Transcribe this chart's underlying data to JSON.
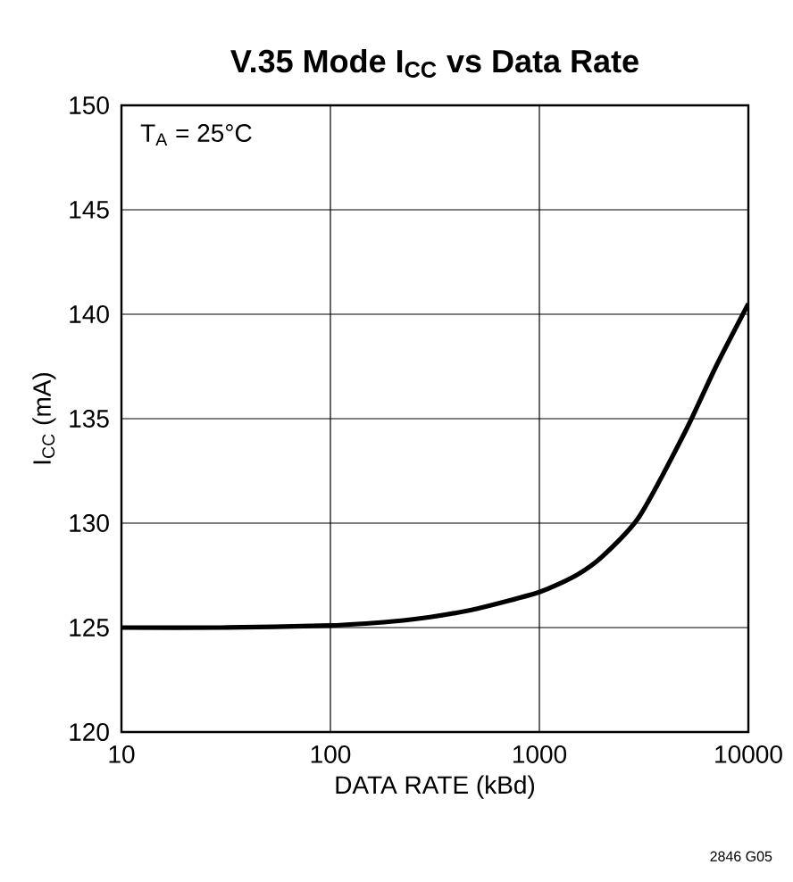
{
  "chart_data": {
    "type": "line",
    "title": "V.35 Mode I$_{CC}$ vs Data Rate",
    "xlabel": "DATA RATE (kBd)",
    "ylabel": "I$_{CC}$ (mA)",
    "annotations": [
      "T$_{A}$ = 25°C",
      "2846 G05"
    ],
    "x": [
      10,
      30,
      100,
      200,
      300,
      500,
      1000,
      1500,
      2000,
      3000,
      5000,
      7000,
      10000
    ],
    "series": [
      {
        "color": "#000000",
        "values": [
          125,
          125,
          125.1,
          125.3,
          125.5,
          125.9,
          126.7,
          127.5,
          128.4,
          130.3,
          134.4,
          137.5,
          140.5
        ]
      }
    ],
    "xlim": [
      10,
      10000
    ],
    "ylim": [
      120,
      150
    ],
    "xticks": [
      10,
      100,
      1000,
      10000
    ],
    "yticks": [
      120,
      125,
      130,
      135,
      140,
      145,
      150
    ],
    "log": "x",
    "grid": true,
    "line_style": "solid",
    "marker": "none"
  }
}
